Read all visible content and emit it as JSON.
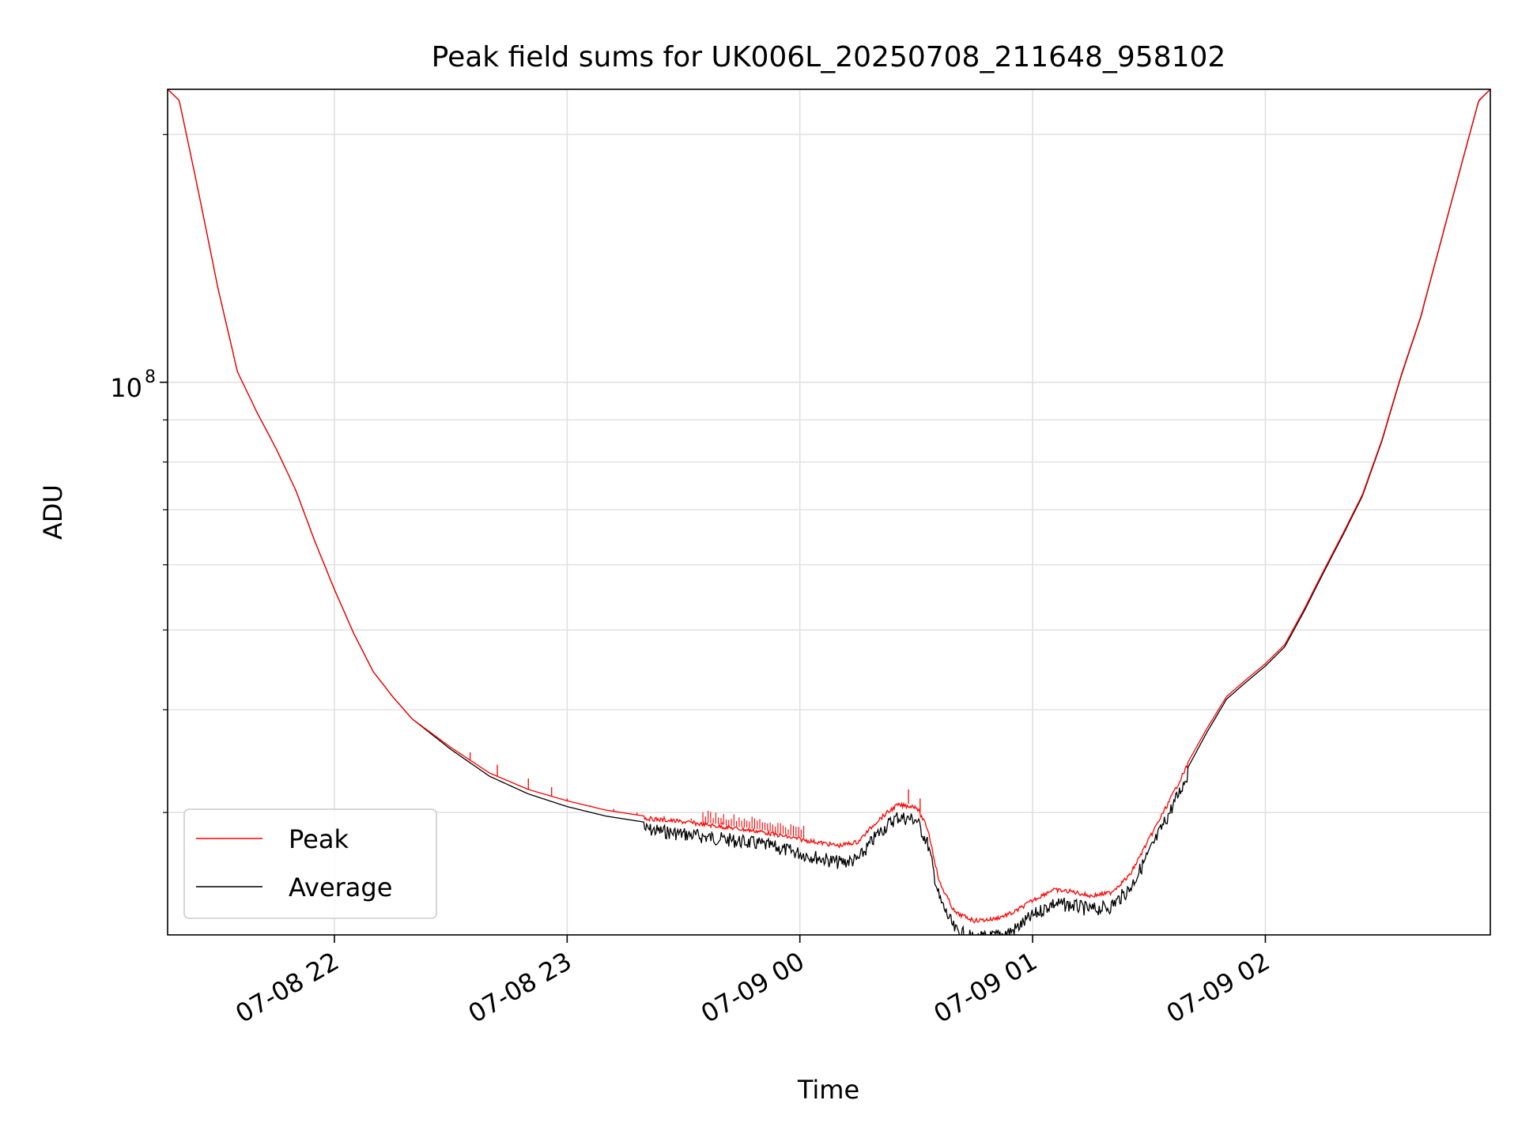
{
  "chart_data": {
    "type": "line",
    "title": "Peak field sums for UK006L_20250708_211648_958102",
    "xlabel": "Time",
    "ylabel": "ADU",
    "yscale": "log",
    "ylim": [
      21300000,
      227000000
    ],
    "xlim": [
      "2025-07-08T21:17:00",
      "2025-07-09T02:58:00"
    ],
    "x_ticks": [
      {
        "value": "2025-07-08T22:00:00",
        "label": "07-08 22"
      },
      {
        "value": "2025-07-08T23:00:00",
        "label": "07-08 23"
      },
      {
        "value": "2025-07-09T00:00:00",
        "label": "07-09 00"
      },
      {
        "value": "2025-07-09T01:00:00",
        "label": "07-09 01"
      },
      {
        "value": "2025-07-09T02:00:00",
        "label": "07-09 02"
      }
    ],
    "y_major_tick": {
      "base": "10",
      "exp": "8",
      "value": 100000000
    },
    "y_minor_ticks": [
      30000000,
      40000000,
      50000000,
      60000000,
      70000000,
      80000000,
      90000000,
      200000000
    ],
    "grid": true,
    "legend_position": "lower-left",
    "colors": {
      "peak": "#ff0000",
      "average": "#000000",
      "grid": "#e0e0e0"
    },
    "series": [
      {
        "name": "Peak",
        "x": [
          "2025-07-08T21:17:00",
          "2025-07-08T21:20:00",
          "2025-07-08T21:25:00",
          "2025-07-08T21:30:00",
          "2025-07-08T21:35:00",
          "2025-07-08T21:40:00",
          "2025-07-08T21:45:00",
          "2025-07-08T21:50:00",
          "2025-07-08T21:55:00",
          "2025-07-08T22:00:00",
          "2025-07-08T22:05:00",
          "2025-07-08T22:10:00",
          "2025-07-08T22:15:00",
          "2025-07-08T22:20:00",
          "2025-07-08T22:30:00",
          "2025-07-08T22:40:00",
          "2025-07-08T22:50:00",
          "2025-07-08T23:00:00",
          "2025-07-08T23:10:00",
          "2025-07-08T23:20:00",
          "2025-07-08T23:30:00",
          "2025-07-08T23:40:00",
          "2025-07-08T23:50:00",
          "2025-07-09T00:00:00",
          "2025-07-09T00:10:00",
          "2025-07-09T00:15:00",
          "2025-07-09T00:20:00",
          "2025-07-09T00:25:00",
          "2025-07-09T00:30:00",
          "2025-07-09T00:33:00",
          "2025-07-09T00:36:00",
          "2025-07-09T00:40:00",
          "2025-07-09T00:45:00",
          "2025-07-09T00:50:00",
          "2025-07-09T00:55:00",
          "2025-07-09T01:00:00",
          "2025-07-09T01:05:00",
          "2025-07-09T01:10:00",
          "2025-07-09T01:15:00",
          "2025-07-09T01:20:00",
          "2025-07-09T01:25:00",
          "2025-07-09T01:30:00",
          "2025-07-09T01:35:00",
          "2025-07-09T01:40:00",
          "2025-07-09T01:45:00",
          "2025-07-09T01:50:00",
          "2025-07-09T01:55:00",
          "2025-07-09T02:00:00",
          "2025-07-09T02:05:00",
          "2025-07-09T02:10:00",
          "2025-07-09T02:15:00",
          "2025-07-09T02:20:00",
          "2025-07-09T02:25:00",
          "2025-07-09T02:30:00",
          "2025-07-09T02:35:00",
          "2025-07-09T02:40:00",
          "2025-07-09T02:45:00",
          "2025-07-09T02:50:00",
          "2025-07-09T02:55:00",
          "2025-07-09T02:58:00"
        ],
        "values": [
          227000000,
          220000000,
          170000000,
          130000000,
          103000000,
          92000000,
          83000000,
          74000000,
          64000000,
          56000000,
          49500000,
          44500000,
          41500000,
          39000000,
          36000000,
          33500000,
          32000000,
          31000000,
          30200000,
          29700000,
          29400000,
          29000000,
          28600000,
          28000000,
          27500000,
          27800000,
          29500000,
          30800000,
          30700000,
          28800000,
          24800000,
          22800000,
          22300000,
          22400000,
          22800000,
          23600000,
          24300000,
          24200000,
          23900000,
          24100000,
          25300000,
          28000000,
          31000000,
          34500000,
          38000000,
          41500000,
          43500000,
          45500000,
          48000000,
          53000000,
          59000000,
          65500000,
          73000000,
          85000000,
          102000000,
          120000000,
          147000000,
          180000000,
          220000000,
          227000000
        ],
        "spikes": [
          {
            "x": "2025-07-08T22:35:00",
            "y": 35500000
          },
          {
            "x": "2025-07-08T22:42:00",
            "y": 34300000
          },
          {
            "x": "2025-07-08T22:50:00",
            "y": 33000000
          },
          {
            "x": "2025-07-08T22:56:00",
            "y": 32200000
          },
          {
            "x": "2025-07-08T23:00:00",
            "y": 31200000
          },
          {
            "x": "2025-07-08T23:06:00",
            "y": 30600000
          },
          {
            "x": "2025-07-08T23:12:00",
            "y": 30300000
          },
          {
            "x": "2025-07-08T23:18:00",
            "y": 30000000
          },
          {
            "x": "2025-07-08T23:25:00",
            "y": 29700000
          },
          {
            "x": "2025-07-08T23:32:00",
            "y": 29500000
          },
          {
            "x": "2025-07-08T23:40:00",
            "y": 29200000
          },
          {
            "x": "2025-07-09T00:28:00",
            "y": 32000000
          },
          {
            "x": "2025-07-09T00:31:00",
            "y": 31200000
          }
        ]
      },
      {
        "name": "Average",
        "x": [
          "2025-07-08T21:17:00",
          "2025-07-08T21:20:00",
          "2025-07-08T21:25:00",
          "2025-07-08T21:30:00",
          "2025-07-08T21:35:00",
          "2025-07-08T21:40:00",
          "2025-07-08T21:45:00",
          "2025-07-08T21:50:00",
          "2025-07-08T21:55:00",
          "2025-07-08T22:00:00",
          "2025-07-08T22:05:00",
          "2025-07-08T22:10:00",
          "2025-07-08T22:15:00",
          "2025-07-08T22:20:00",
          "2025-07-08T22:30:00",
          "2025-07-08T22:40:00",
          "2025-07-08T22:50:00",
          "2025-07-08T23:00:00",
          "2025-07-08T23:10:00",
          "2025-07-08T23:20:00",
          "2025-07-08T23:30:00",
          "2025-07-08T23:40:00",
          "2025-07-08T23:50:00",
          "2025-07-09T00:00:00",
          "2025-07-09T00:10:00",
          "2025-07-09T00:15:00",
          "2025-07-09T00:20:00",
          "2025-07-09T00:25:00",
          "2025-07-09T00:30:00",
          "2025-07-09T00:33:00",
          "2025-07-09T00:36:00",
          "2025-07-09T00:40:00",
          "2025-07-09T00:45:00",
          "2025-07-09T00:50:00",
          "2025-07-09T00:55:00",
          "2025-07-09T01:00:00",
          "2025-07-09T01:05:00",
          "2025-07-09T01:10:00",
          "2025-07-09T01:15:00",
          "2025-07-09T01:20:00",
          "2025-07-09T01:25:00",
          "2025-07-09T01:30:00",
          "2025-07-09T01:35:00",
          "2025-07-09T01:40:00",
          "2025-07-09T01:45:00",
          "2025-07-09T01:50:00",
          "2025-07-09T01:55:00",
          "2025-07-09T02:00:00",
          "2025-07-09T02:05:00",
          "2025-07-09T02:10:00",
          "2025-07-09T02:15:00",
          "2025-07-09T02:20:00",
          "2025-07-09T02:25:00",
          "2025-07-09T02:30:00",
          "2025-07-09T02:35:00",
          "2025-07-09T02:40:00",
          "2025-07-09T02:45:00",
          "2025-07-09T02:50:00",
          "2025-07-09T02:55:00",
          "2025-07-09T02:58:00"
        ],
        "values": [
          227000000,
          220000000,
          170000000,
          130000000,
          103000000,
          92000000,
          83000000,
          74000000,
          64000000,
          56000000,
          49500000,
          44500000,
          41500000,
          39000000,
          35800000,
          33200000,
          31600000,
          30500000,
          29700000,
          29200000,
          28800000,
          28400000,
          28000000,
          27300000,
          26600000,
          26800000,
          28800000,
          30200000,
          30000000,
          28000000,
          24000000,
          22000000,
          21500000,
          21600000,
          22000000,
          22900000,
          23700000,
          23600000,
          23300000,
          23500000,
          24700000,
          27300000,
          30400000,
          34000000,
          37600000,
          41200000,
          43200000,
          45200000,
          47700000,
          52700000,
          58700000,
          65200000,
          72700000,
          84700000,
          101700000,
          119700000,
          146700000,
          179700000,
          219700000,
          227000000
        ],
        "noise_amplitude": 0.03
      }
    ]
  }
}
